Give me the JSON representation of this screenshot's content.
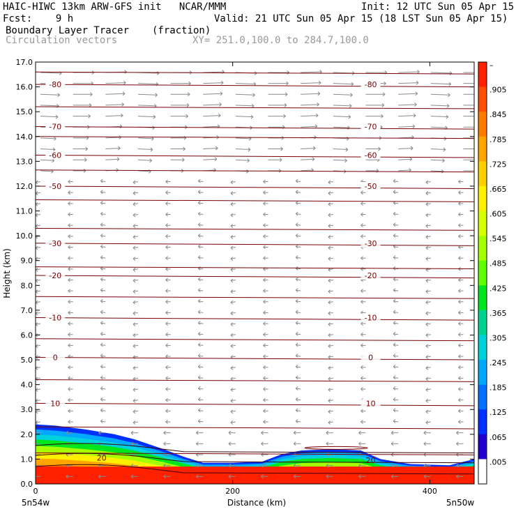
{
  "header": {
    "title_left": "HAIC-HIWC 13km ARW-GFS init   NCAR/MMM",
    "init": "Init: 12 UTC Sun 05 Apr 15",
    "fcst": "Fcst:    9 h",
    "valid": "Valid: 21 UTC Sun 05 Apr 15 (18 LST Sun 05 Apr 15)",
    "field": "Boundary Layer Tracer",
    "field_units": "(fraction)",
    "vectors": "Circulation vectors",
    "xy": "XY= 251.0,100.0 to 284.7,100.0"
  },
  "axes": {
    "xlabel": "Distance (km)",
    "ylabel": "Height (km)",
    "x_left_label": "5n54w",
    "x_right_label": "5n50w"
  },
  "colorbar": {
    "labels": [
      "–",
      ".905",
      ".845",
      ".785",
      ".725",
      ".665",
      ".605",
      ".545",
      ".485",
      ".425",
      ".365",
      ".305",
      ".245",
      ".185",
      ".125",
      ".065",
      ".005"
    ],
    "colors": [
      "#ff2000",
      "#ff4d00",
      "#ff7a00",
      "#ffa500",
      "#ffd000",
      "#fff000",
      "#d6ff00",
      "#a4ff00",
      "#5eff00",
      "#00e61e",
      "#00d292",
      "#00d2dc",
      "#00a8ff",
      "#0070ff",
      "#0030ff",
      "#2000d0",
      "#ffffff"
    ]
  },
  "chart_data": {
    "type": "heatmap",
    "x_range": [
      0,
      445
    ],
    "ylim": [
      0,
      17
    ],
    "x_ticks": [
      0,
      200,
      400
    ],
    "y_ticks": [
      "0.0",
      "1.0",
      "2.0",
      "3.0",
      "4.0",
      "5.0",
      "6.0",
      "7.0",
      "8.0",
      "9.0",
      "10.0",
      "11.0",
      "12.0",
      "13.0",
      "14.0",
      "15.0",
      "16.0",
      "17.0"
    ],
    "tracer_top_km": {
      "x": [
        0,
        20,
        50,
        80,
        100,
        130,
        150,
        170,
        200,
        230,
        250,
        270,
        300,
        330,
        350,
        380,
        420,
        445
      ],
      "z": [
        2.4,
        2.35,
        2.2,
        2.0,
        1.8,
        1.4,
        1.1,
        0.85,
        0.85,
        0.9,
        1.2,
        1.35,
        1.4,
        1.35,
        1.0,
        0.8,
        0.75,
        1.0
      ]
    },
    "temperature_contours": {
      "levels": [
        "10",
        "0",
        "-10",
        "-20",
        "-30",
        "-50",
        "-60",
        "-70",
        "-80"
      ],
      "heights_km": [
        3.25,
        5.1,
        6.7,
        8.4,
        9.7,
        12.0,
        13.25,
        14.4,
        16.1
      ]
    },
    "inner_contour_label": "20"
  }
}
